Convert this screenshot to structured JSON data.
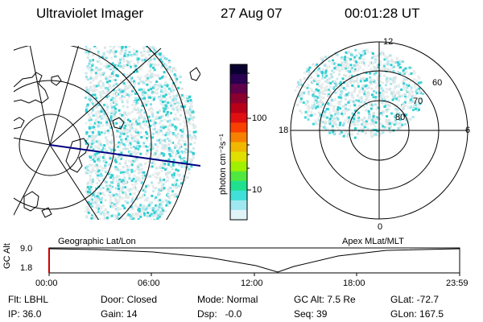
{
  "header": {
    "instrument": "Ultraviolet Imager",
    "date": "27 Aug 07",
    "time": "00:01:28 UT"
  },
  "left_panel": {
    "caption": "Geographic Lat/Lon"
  },
  "right_panel": {
    "caption": "Apex MLat/MLT",
    "mlt_labels": [
      "12",
      "6",
      "0",
      "18"
    ],
    "lat_labels": [
      "60",
      "70",
      "80"
    ]
  },
  "colorbar": {
    "unit_label": "photon cm⁻²s⁻¹",
    "ticks": [
      "100",
      "10"
    ],
    "colors": [
      "#0a0030",
      "#2a0050",
      "#60004a",
      "#8c0030",
      "#b80018",
      "#e01010",
      "#f84000",
      "#f88000",
      "#f0b800",
      "#e0e000",
      "#a0f000",
      "#50e840",
      "#20e090",
      "#40e0d8",
      "#a0e8f0",
      "#e0f4f8"
    ]
  },
  "altitude_plot": {
    "ylabel": "GC Alt",
    "yticks": [
      "9.0",
      "1.8"
    ],
    "xticks": [
      "00:00",
      "06:00",
      "12:00",
      "18:00",
      "23:59"
    ],
    "marker_color": "#cc0000"
  },
  "footer": {
    "row1": [
      "Flt: LBHL",
      "Door: Closed",
      "Mode: Normal",
      "GC Alt: 7.5 Re",
      "GLat: -72.7"
    ],
    "row2": [
      "IP: 36.0",
      "Gain: 14",
      "Dsp:   -0.0",
      "Seq: 39",
      "GLon: 167.5"
    ]
  }
}
